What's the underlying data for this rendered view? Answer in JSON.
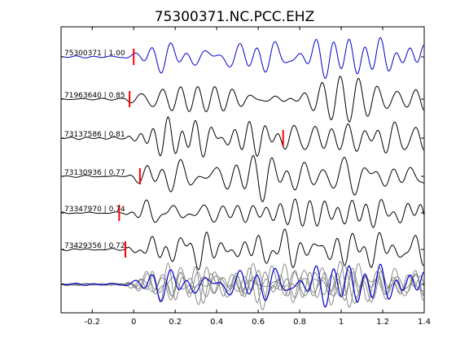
{
  "chart_data": {
    "type": "line",
    "title": "75300371.NC.PCC.EHZ",
    "xlabel": "",
    "ylabel": "",
    "xlim": [
      -0.35,
      1.4
    ],
    "xticks": [
      -0.2,
      0,
      0.2,
      0.4,
      0.6,
      0.8,
      1,
      1.2,
      1.4
    ],
    "xtick_labels": [
      "-0.2",
      "0",
      "0.2",
      "0.4",
      "0.6",
      "0.8",
      "1",
      "1.2",
      "1.4"
    ],
    "grid": false,
    "colors": {
      "reference": "#0000cc",
      "trace": "#000000",
      "stack": "#808080",
      "pick": "#ff0000"
    },
    "traces": [
      {
        "label": "75300371 | 1.00",
        "pick": 0.0,
        "color": "reference",
        "amp": 0.95,
        "seed": 1,
        "quiet_until": -0.05
      },
      {
        "label": "71963640 | 0.85",
        "pick": -0.02,
        "color": "trace",
        "amp": 1.0,
        "seed": 2,
        "quiet_until": -0.05
      },
      {
        "label": "73137586 | 0.81",
        "pick": 0.72,
        "color": "trace",
        "amp": 1.0,
        "seed": 3,
        "quiet_until": -0.05
      },
      {
        "label": "73130936 | 0.77",
        "pick": 0.03,
        "color": "trace",
        "amp": 1.0,
        "seed": 4,
        "quiet_until": -0.05
      },
      {
        "label": "73347970 | 0.74",
        "pick": -0.07,
        "color": "trace",
        "amp": 1.0,
        "seed": 5,
        "quiet_until": -0.05
      },
      {
        "label": "73429356 | 0.72",
        "pick": -0.04,
        "color": "trace",
        "amp": 1.0,
        "seed": 6,
        "quiet_until": -0.05
      }
    ],
    "stack": {
      "label": "",
      "n_overlay": 6
    }
  }
}
